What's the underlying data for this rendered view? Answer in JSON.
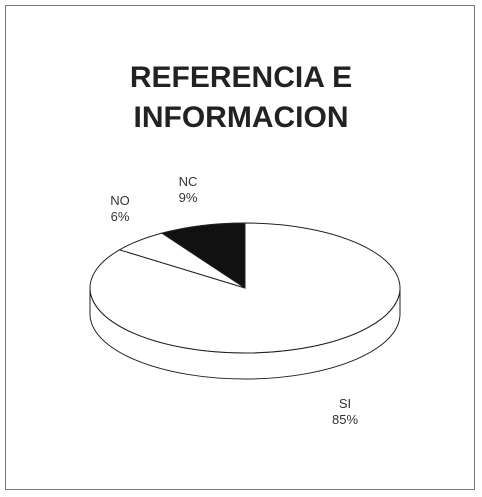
{
  "chart_data": {
    "type": "pie",
    "title": "REFERENCIA E INFORMACION",
    "categories": [
      "SI",
      "NO",
      "NC"
    ],
    "values": [
      85,
      6,
      9
    ],
    "value_labels": [
      "85%",
      "6%",
      "9%"
    ],
    "colors": [
      "#ffffff",
      "#ffffff",
      "#111111"
    ]
  }
}
